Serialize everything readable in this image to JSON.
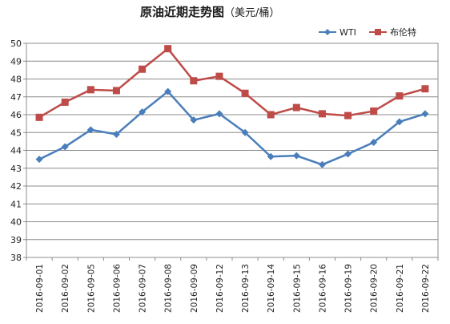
{
  "chart_data": {
    "type": "line",
    "title": "原油近期走势图",
    "subtitle": "（美元/桶）",
    "xlabel": "",
    "ylabel": "",
    "categories": [
      "2016-09-01",
      "2016-09-02",
      "2016-09-05",
      "2016-09-06",
      "2016-09-07",
      "2016-09-08",
      "2016-09-09",
      "2016-09-12",
      "2016-09-13",
      "2016-09-14",
      "2016-09-15",
      "2016-09-16",
      "2016-09-19",
      "2016-09-20",
      "2016-09-21",
      "2016-09-22"
    ],
    "ylim": [
      38,
      50
    ],
    "ytick_step": 1,
    "grid": true,
    "legend_position": "top-right",
    "series": [
      {
        "name": "WTI",
        "color": "#4a7ebb",
        "marker": "diamond",
        "values": [
          43.5,
          44.2,
          45.15,
          44.9,
          46.15,
          47.3,
          45.7,
          46.05,
          45.0,
          43.65,
          43.7,
          43.2,
          43.8,
          44.45,
          45.6,
          46.05
        ]
      },
      {
        "name": "布伦特",
        "color": "#be4b48",
        "marker": "square",
        "values": [
          45.85,
          46.7,
          47.4,
          47.35,
          48.55,
          49.7,
          47.9,
          48.15,
          47.2,
          46.0,
          46.4,
          46.05,
          45.95,
          46.2,
          47.05,
          47.45
        ]
      }
    ]
  }
}
